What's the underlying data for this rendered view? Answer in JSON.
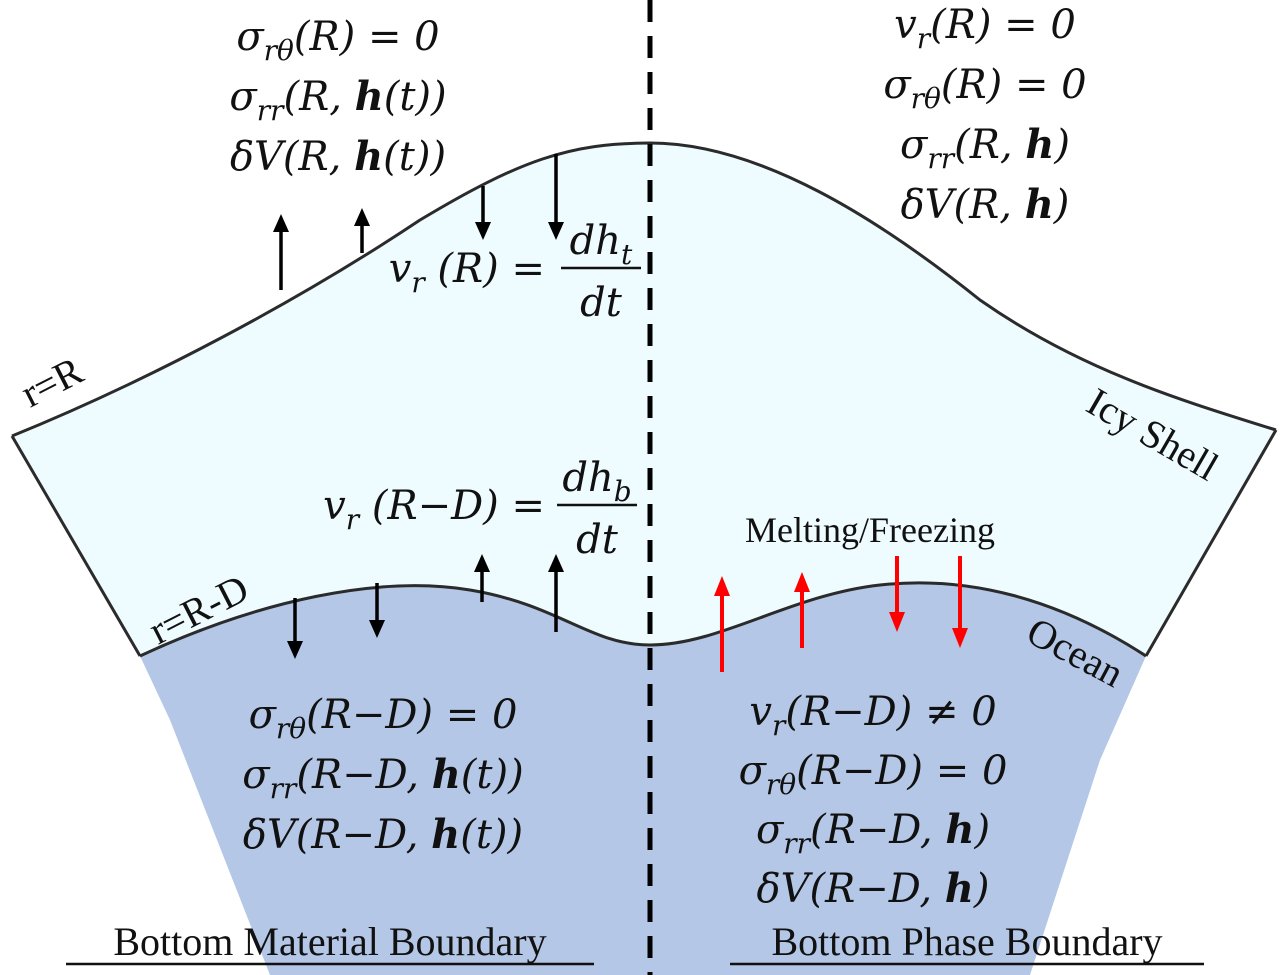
{
  "colors": {
    "ice": "#eefbff",
    "ocean": "#b4c7e7",
    "outline": "#2b2b2b",
    "arrow": "#000000",
    "phase_arrow": "#ff0000",
    "divider": "#000000"
  },
  "labels": {
    "outer_radius": "r=R",
    "inner_radius": "r=R-D",
    "icy_shell": "Icy Shell",
    "ocean": "Ocean",
    "melting_freezing": "Melting/Freezing"
  },
  "left_top_conditions": [
    {
      "base": "σ",
      "sub": "rθ",
      "rest": "(R) = 0"
    },
    {
      "base": "σ",
      "sub": "rr",
      "rest": "(R, ",
      "bold": "h",
      "tail": "(t))"
    },
    {
      "base": "δV",
      "sub": "",
      "rest": "(R, ",
      "bold": "h",
      "tail": "(t))"
    }
  ],
  "top_velocity": {
    "lhs": "v",
    "lhs_sub": "r",
    "lhs_rest": "(R) =",
    "num": "dh",
    "num_sub": "t",
    "den": "dt"
  },
  "bottom_velocity": {
    "lhs": "v",
    "lhs_sub": "r",
    "lhs_rest": "(R−D) =",
    "num": "dh",
    "num_sub": "b",
    "den": "dt"
  },
  "right_top_conditions": [
    {
      "base": "v",
      "sub": "r",
      "rest": "(R) = 0"
    },
    {
      "base": "σ",
      "sub": "rθ",
      "rest": "(R) = 0"
    },
    {
      "base": "σ",
      "sub": "rr",
      "rest": "(R, ",
      "bold": "h",
      "tail": ")"
    },
    {
      "base": "δV",
      "sub": "",
      "rest": "(R, ",
      "bold": "h",
      "tail": ")"
    }
  ],
  "left_bottom_conditions": [
    {
      "base": "σ",
      "sub": "rθ",
      "rest": "(R−D) = 0"
    },
    {
      "base": "σ",
      "sub": "rr",
      "rest": "(R−D, ",
      "bold": "h",
      "tail": "(t))"
    },
    {
      "base": "δV",
      "sub": "",
      "rest": "(R−D, ",
      "bold": "h",
      "tail": "(t))"
    }
  ],
  "right_bottom_conditions": [
    {
      "base": "v",
      "sub": "r",
      "rest": "(R−D) ≠ 0"
    },
    {
      "base": "σ",
      "sub": "rθ",
      "rest": "(R−D) = 0"
    },
    {
      "base": "σ",
      "sub": "rr",
      "rest": "(R−D, ",
      "bold": "h",
      "tail": ")"
    },
    {
      "base": "δV",
      "sub": "",
      "rest": "(R−D, ",
      "bold": "h",
      "tail": ")"
    }
  ],
  "captions": {
    "left": "Bottom Material Boundary",
    "right": "Bottom Phase Boundary"
  }
}
